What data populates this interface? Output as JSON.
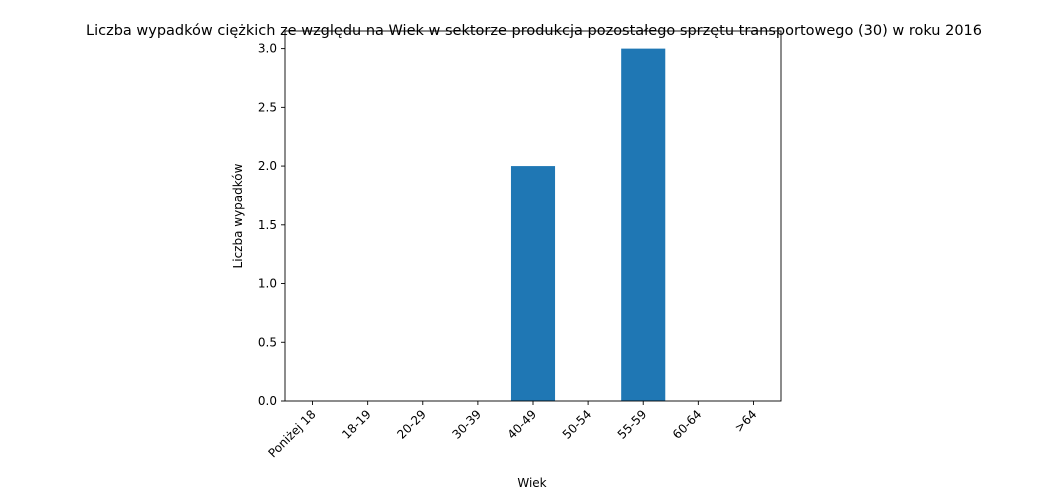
{
  "chart_data": {
    "type": "bar",
    "title": "Liczba wypadków ciężkich ze względu na Wiek w sektorze produkcja pozostałego sprzętu transportowego  (30)  w roku 2016",
    "xlabel": "Wiek",
    "ylabel": "Liczba wypadków",
    "categories": [
      "Poniżej 18",
      "18-19",
      "20-29",
      "30-39",
      "40-49",
      "50-54",
      "55-59",
      "60-64",
      ">64"
    ],
    "values": [
      0,
      0,
      0,
      0,
      2,
      0,
      3,
      0,
      0
    ],
    "ylim": [
      0,
      3.15
    ],
    "yticks": [
      "0.0",
      "0.5",
      "1.0",
      "1.5",
      "2.0",
      "2.5",
      "3.0"
    ],
    "grid": false,
    "colors": {
      "bar": "#1f77b4"
    }
  }
}
